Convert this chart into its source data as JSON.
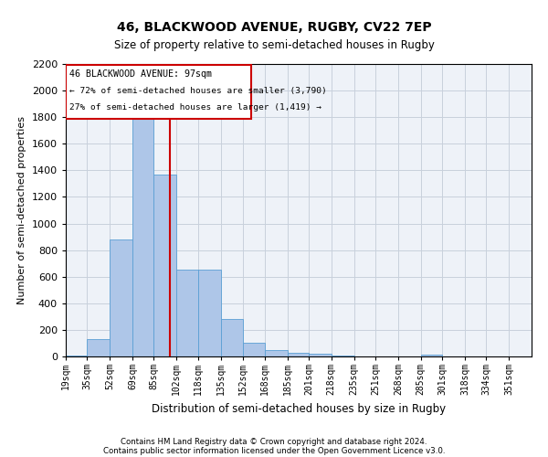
{
  "title1": "46, BLACKWOOD AVENUE, RUGBY, CV22 7EP",
  "title2": "Size of property relative to semi-detached houses in Rugby",
  "xlabel": "Distribution of semi-detached houses by size in Rugby",
  "ylabel": "Number of semi-detached properties",
  "footer1": "Contains HM Land Registry data © Crown copyright and database right 2024.",
  "footer2": "Contains public sector information licensed under the Open Government Licence v3.0.",
  "property_label": "46 BLACKWOOD AVENUE: 97sqm",
  "pct_smaller": 72,
  "count_smaller": 3790,
  "pct_larger": 27,
  "count_larger": 1419,
  "bin_labels": [
    "19sqm",
    "35sqm",
    "52sqm",
    "69sqm",
    "85sqm",
    "102sqm",
    "118sqm",
    "135sqm",
    "152sqm",
    "168sqm",
    "185sqm",
    "201sqm",
    "218sqm",
    "235sqm",
    "251sqm",
    "268sqm",
    "285sqm",
    "301sqm",
    "318sqm",
    "334sqm",
    "351sqm"
  ],
  "bin_edges": [
    19,
    35,
    52,
    69,
    85,
    102,
    118,
    135,
    152,
    168,
    185,
    201,
    218,
    235,
    251,
    268,
    285,
    301,
    318,
    334,
    351,
    368
  ],
  "bar_values": [
    10,
    130,
    880,
    1800,
    1370,
    650,
    650,
    280,
    100,
    45,
    30,
    20,
    10,
    0,
    0,
    0,
    15,
    0,
    0,
    0,
    0
  ],
  "bar_color": "#aec6e8",
  "bar_edge_color": "#5a9fd4",
  "vline_x": 97,
  "vline_color": "#cc0000",
  "annotation_box_color": "#cc0000",
  "ylim": [
    0,
    2200
  ],
  "yticks": [
    0,
    200,
    400,
    600,
    800,
    1000,
    1200,
    1400,
    1600,
    1800,
    2000,
    2200
  ],
  "grid_color": "#c8d0dc",
  "bg_color": "#eef2f8"
}
